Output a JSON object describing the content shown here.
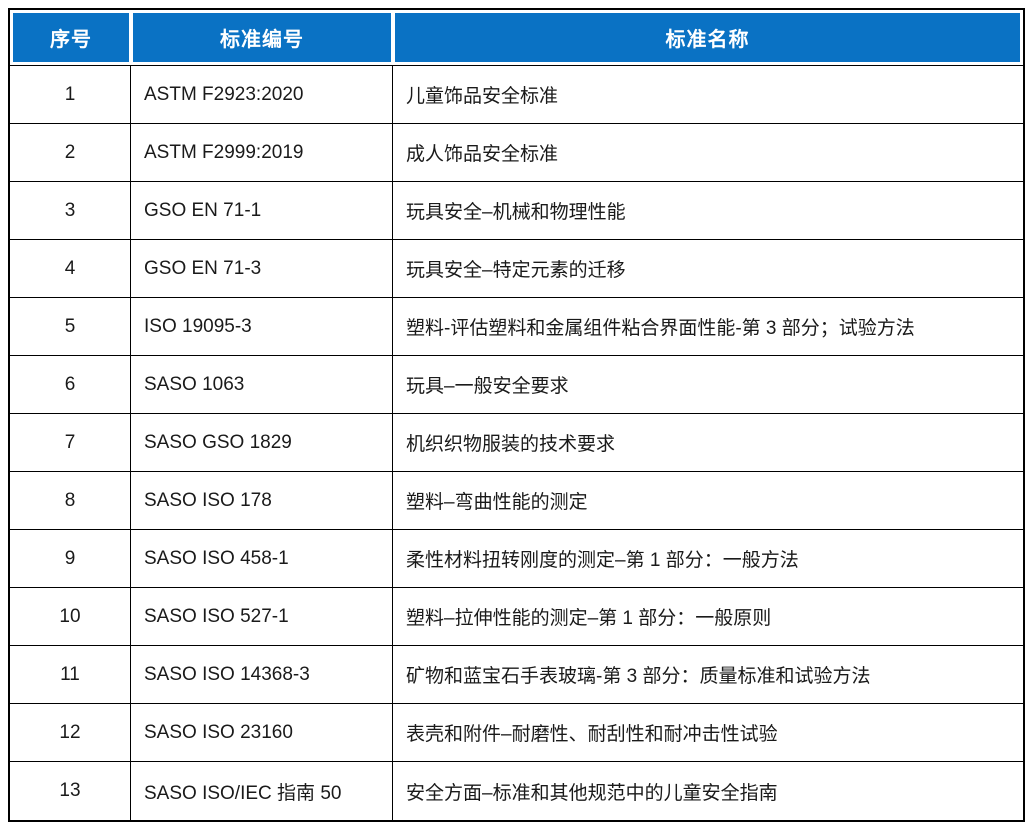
{
  "colors": {
    "header_bg": "#0a72c4",
    "header_text": "#ffffff",
    "border": "#000000",
    "body_text": "#1a1a1a",
    "background": "#ffffff"
  },
  "table": {
    "columns": [
      {
        "label": "序号"
      },
      {
        "label": "标准编号"
      },
      {
        "label": "标准名称"
      }
    ],
    "rows": [
      {
        "no": "1",
        "code": "ASTM F2923:2020",
        "name": "儿童饰品安全标准"
      },
      {
        "no": "2",
        "code": "ASTM F2999:2019",
        "name": "成人饰品安全标准"
      },
      {
        "no": "3",
        "code": "GSO EN 71-1",
        "name": "玩具安全–机械和物理性能"
      },
      {
        "no": "4",
        "code": "GSO EN 71-3",
        "name": "玩具安全–特定元素的迁移"
      },
      {
        "no": "5",
        "code": "ISO 19095-3",
        "name": "塑料-评估塑料和金属组件粘合界面性能-第 3 部分；试验方法"
      },
      {
        "no": "6",
        "code": "SASO 1063",
        "name": "玩具–一般安全要求"
      },
      {
        "no": "7",
        "code": "SASO GSO 1829",
        "name": "机织织物服装的技术要求"
      },
      {
        "no": "8",
        "code": "SASO ISO 178",
        "name": "塑料–弯曲性能的测定"
      },
      {
        "no": "9",
        "code": "SASO ISO 458-1",
        "name": "柔性材料扭转刚度的测定–第 1 部分：一般方法"
      },
      {
        "no": "10",
        "code": "SASO ISO 527-1",
        "name": "塑料–拉伸性能的测定–第 1 部分：一般原则"
      },
      {
        "no": "11",
        "code": "SASO ISO 14368-3",
        "name": "矿物和蓝宝石手表玻璃-第 3 部分：质量标准和试验方法"
      },
      {
        "no": "12",
        "code": "SASO ISO 23160",
        "name": "表壳和附件–耐磨性、耐刮性和耐冲击性试验"
      },
      {
        "no": "13",
        "code": "SASO ISO/IEC 指南 50",
        "name": "安全方面–标准和其他规范中的儿童安全指南"
      }
    ]
  }
}
